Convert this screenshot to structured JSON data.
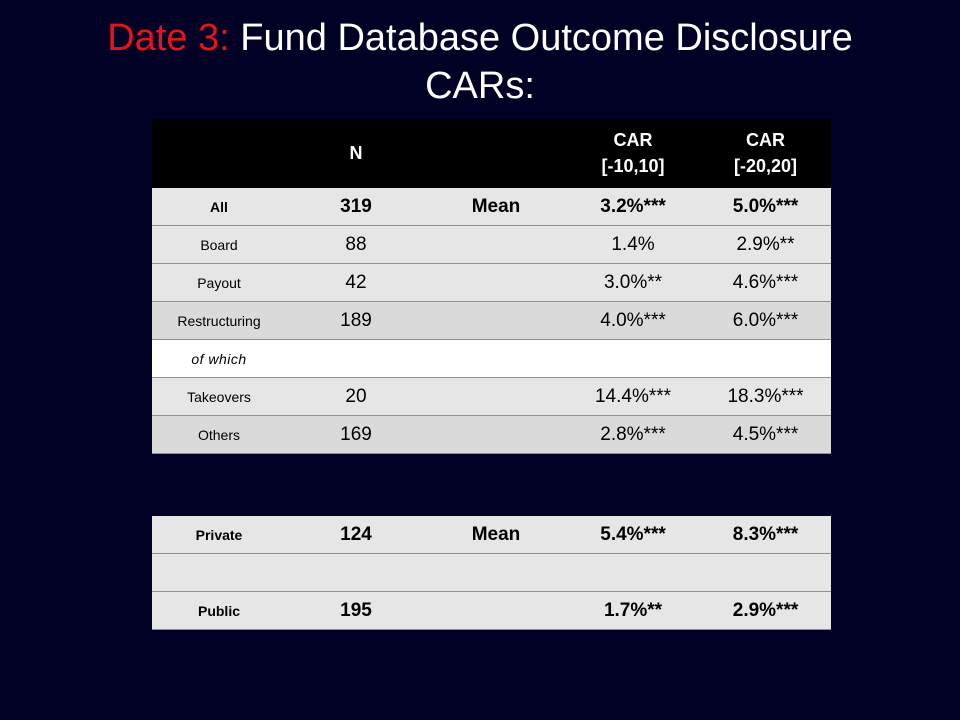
{
  "title": {
    "prefix": "Date 3:",
    "main": " Fund Database Outcome Disclosure",
    "line2": "CARs:"
  },
  "header": {
    "col0": "",
    "col1": "N",
    "col2": "",
    "col3_line1": "CAR",
    "col3_line2": "[-10,10]",
    "col4_line1": "CAR",
    "col4_line2": "[-20,20]"
  },
  "main_rows": [
    {
      "label": "All",
      "n": "319",
      "stat": "Mean",
      "car10": "3.2%***",
      "car20": "5.0%***"
    },
    {
      "label": "Board",
      "n": "88",
      "stat": "",
      "car10": "1.4%",
      "car20": "2.9%**"
    },
    {
      "label": "Payout",
      "n": "42",
      "stat": "",
      "car10": "3.0%**",
      "car20": "4.6%***"
    },
    {
      "label": "Restructuring",
      "n": "189",
      "stat": "",
      "car10": "4.0%***",
      "car20": "6.0%***"
    },
    {
      "label": "of which",
      "n": "",
      "stat": "",
      "car10": "",
      "car20": ""
    },
    {
      "label": "Takeovers",
      "n": "20",
      "stat": "",
      "car10": "14.4%***",
      "car20": "18.3%***"
    },
    {
      "label": "Others",
      "n": "169",
      "stat": "",
      "car10": "2.8%***",
      "car20": "4.5%***"
    }
  ],
  "sub_rows": [
    {
      "label": "Private",
      "n": "124",
      "stat": "Mean",
      "car10": "5.4%***",
      "car20": "8.3%***"
    },
    {
      "label": "",
      "n": "",
      "stat": "",
      "car10": "",
      "car20": ""
    },
    {
      "label": "Public",
      "n": "195",
      "stat": "",
      "car10": "1.7%**",
      "car20": "2.9%***"
    }
  ]
}
